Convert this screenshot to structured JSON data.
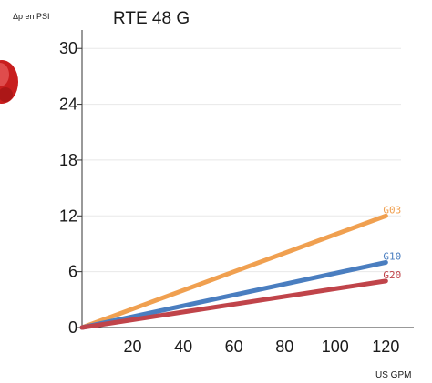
{
  "chart_data": {
    "type": "line",
    "title": "RTE 48 G",
    "ylabel": "Δp en PSI",
    "xlabel": "US GPM",
    "xlim": [
      0,
      126
    ],
    "ylim": [
      0,
      31
    ],
    "x_ticks": [
      20,
      40,
      60,
      80,
      100,
      120
    ],
    "y_ticks": [
      0,
      6,
      12,
      18,
      24,
      30
    ],
    "grid": "horizontal",
    "series": [
      {
        "name": "G03",
        "color": "#f0a050",
        "x": [
          0,
          120
        ],
        "y": [
          0,
          12
        ]
      },
      {
        "name": "G10",
        "color": "#4a7ec0",
        "x": [
          0,
          120
        ],
        "y": [
          0,
          7
        ]
      },
      {
        "name": "G20",
        "color": "#c0444a",
        "x": [
          0,
          120
        ],
        "y": [
          0,
          5
        ]
      }
    ]
  },
  "decoration": {
    "left_edge_icon": "red-sphere-icon",
    "icon_color": "#c81e1e"
  }
}
